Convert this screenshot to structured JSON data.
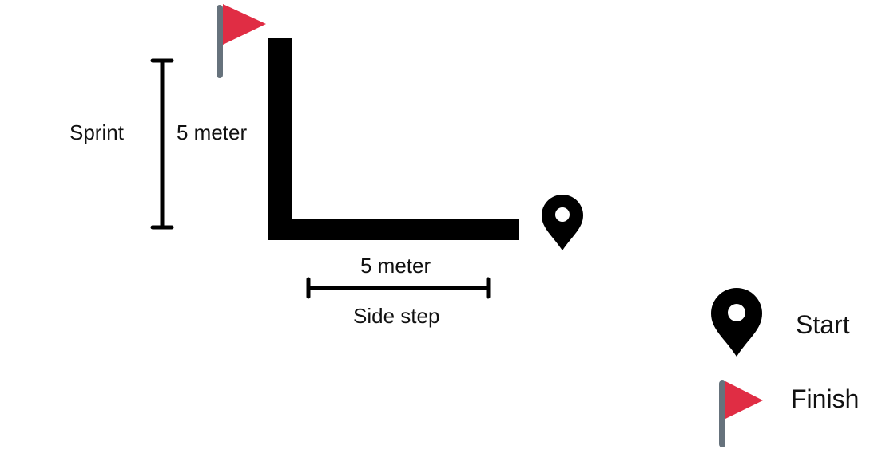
{
  "colors": {
    "path": "#000000",
    "flag": "#e02d44",
    "pole": "#66727c",
    "marker": "#000000",
    "background": "#ffffff"
  },
  "vertical": {
    "activity": "Sprint",
    "distance": "5 meter"
  },
  "horizontal": {
    "activity": "Side step",
    "distance": "5 meter"
  },
  "legend": {
    "start": {
      "label": "Start",
      "icon": "map-pin-icon"
    },
    "finish": {
      "label": "Finish",
      "icon": "flag-icon"
    }
  }
}
